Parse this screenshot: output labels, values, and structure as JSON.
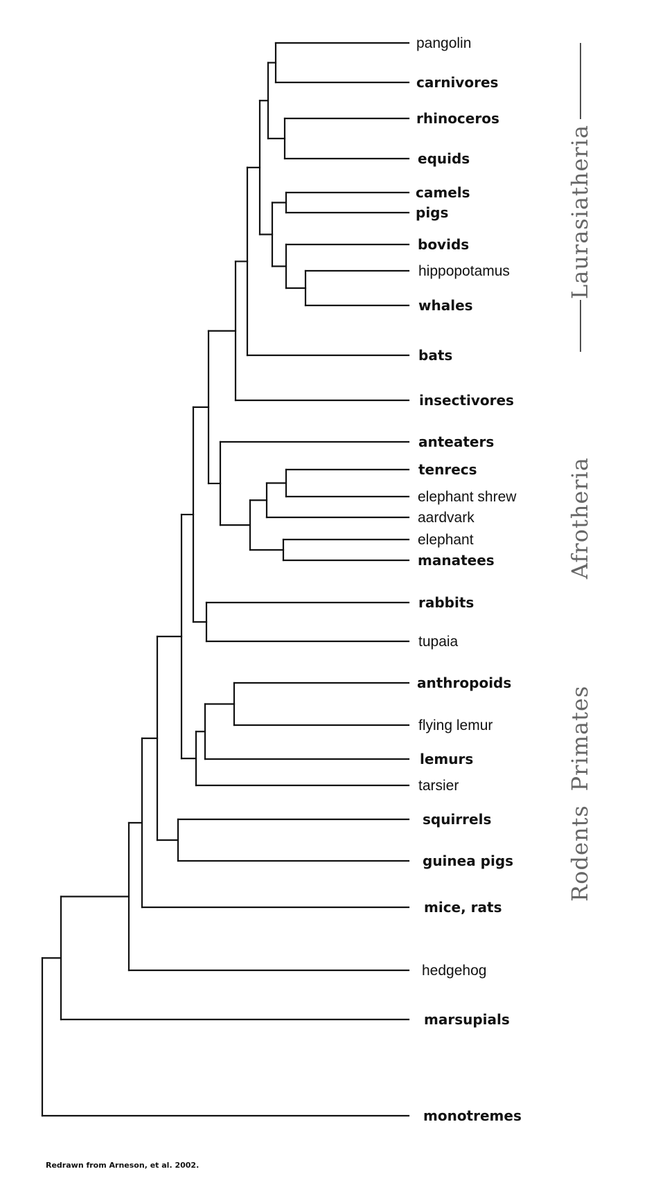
{
  "taxa": [
    {
      "id": "pangolin",
      "label": "pangolin",
      "bold": false
    },
    {
      "id": "carnivores",
      "label": "carnivores",
      "bold": true
    },
    {
      "id": "rhinoceros",
      "label": "rhinoceros",
      "bold": true
    },
    {
      "id": "equids",
      "label": "equids",
      "bold": true
    },
    {
      "id": "camels",
      "label": "camels",
      "bold": true
    },
    {
      "id": "pigs",
      "label": "pigs",
      "bold": true
    },
    {
      "id": "bovids",
      "label": "bovids",
      "bold": true
    },
    {
      "id": "hippopotamus",
      "label": "hippopotamus",
      "bold": false
    },
    {
      "id": "whales",
      "label": "whales",
      "bold": true
    },
    {
      "id": "bats",
      "label": "bats",
      "bold": true
    },
    {
      "id": "insectivores",
      "label": "insectivores",
      "bold": true
    },
    {
      "id": "anteaters",
      "label": "anteaters",
      "bold": true
    },
    {
      "id": "tenrecs",
      "label": "tenrecs",
      "bold": true
    },
    {
      "id": "elephant-shrew",
      "label": "elephant shrew",
      "bold": false
    },
    {
      "id": "aardvark",
      "label": "aardvark",
      "bold": false
    },
    {
      "id": "elephant",
      "label": "elephant",
      "bold": false
    },
    {
      "id": "manatees",
      "label": "manatees",
      "bold": true
    },
    {
      "id": "rabbits",
      "label": "rabbits",
      "bold": true
    },
    {
      "id": "tupaia",
      "label": "tupaia",
      "bold": false
    },
    {
      "id": "anthropoids",
      "label": "anthropoids",
      "bold": true
    },
    {
      "id": "flying-lemur",
      "label": "flying lemur",
      "bold": false
    },
    {
      "id": "lemurs",
      "label": "lemurs",
      "bold": true
    },
    {
      "id": "tarsier",
      "label": "tarsier",
      "bold": false
    },
    {
      "id": "squirrels",
      "label": "squirrels",
      "bold": true
    },
    {
      "id": "guinea-pigs",
      "label": "guinea pigs",
      "bold": true
    },
    {
      "id": "mice-rats",
      "label": "mice, rats",
      "bold": true
    },
    {
      "id": "hedgehog",
      "label": "hedgehog",
      "bold": false
    },
    {
      "id": "marsupials",
      "label": "marsupials",
      "bold": true
    },
    {
      "id": "monotremes",
      "label": "monotremes",
      "bold": true
    }
  ],
  "groups": [
    {
      "id": "laurasiatheria",
      "label": "Laurasiatheria"
    },
    {
      "id": "afrotheria",
      "label": "Afrotheria"
    },
    {
      "id": "primates",
      "label": "Primates"
    },
    {
      "id": "rodents",
      "label": "Rodents"
    }
  ],
  "tree": {
    "name": "root",
    "children": [
      {
        "name": "n-theria",
        "children": [
          {
            "name": "n-eutheria",
            "children": [
              {
                "name": "n-e1",
                "children": [
                  {
                    "name": "n-e2",
                    "children": [
                      {
                        "name": "n-e3",
                        "children": [
                          {
                            "name": "n-e4",
                            "children": [
                              {
                                "name": "n-laur",
                                "children": [
                                  {
                                    "name": "n-l1",
                                    "children": [
                                      {
                                        "name": "n-l2",
                                        "children": [
                                          {
                                            "name": "n-l3",
                                            "children": [
                                              {
                                                "name": "n-l4",
                                                "children": [
                                                  {
                                                    "name": "n-pc",
                                                    "children": [
                                                      {
                                                        "taxon": "pangolin"
                                                      },
                                                      {
                                                        "taxon": "carnivores"
                                                      }
                                                    ]
                                                  },
                                                  {
                                                    "name": "n-re",
                                                    "children": [
                                                      {
                                                        "taxon": "rhinoceros"
                                                      },
                                                      {
                                                        "taxon": "equids"
                                                      }
                                                    ]
                                                  }
                                                ]
                                              },
                                              {
                                                "name": "n-art",
                                                "children": [
                                                  {
                                                    "name": "n-cp",
                                                    "children": [
                                                      {
                                                        "taxon": "camels"
                                                      },
                                                      {
                                                        "taxon": "pigs"
                                                      }
                                                    ]
                                                  },
                                                  {
                                                    "name": "n-bhw",
                                                    "children": [
                                                      {
                                                        "taxon": "bovids"
                                                      },
                                                      {
                                                        "name": "n-hw",
                                                        "children": [
                                                          {
                                                            "taxon": "hippopotamus"
                                                          },
                                                          {
                                                            "taxon": "whales"
                                                          }
                                                        ]
                                                      }
                                                    ]
                                                  }
                                                ]
                                              }
                                            ]
                                          },
                                          {
                                            "taxon": "bats"
                                          }
                                        ]
                                      },
                                      {
                                        "taxon": "insectivores"
                                      }
                                    ]
                                  },
                                  {
                                    "name": "n-afro",
                                    "children": [
                                      {
                                        "taxon": "anteaters"
                                      },
                                      {
                                        "name": "n-a1",
                                        "children": [
                                          {
                                            "name": "n-a2",
                                            "children": [
                                              {
                                                "name": "n-te",
                                                "children": [
                                                  {
                                                    "taxon": "tenrecs"
                                                  },
                                                  {
                                                    "taxon": "elephant-shrew"
                                                  }
                                                ]
                                              },
                                              {
                                                "taxon": "aardvark"
                                              }
                                            ]
                                          },
                                          {
                                            "name": "n-em",
                                            "children": [
                                              {
                                                "taxon": "elephant"
                                              },
                                              {
                                                "taxon": "manatees"
                                              }
                                            ]
                                          }
                                        ]
                                      }
                                    ]
                                  }
                                ]
                              },
                              {
                                "name": "n-rt",
                                "children": [
                                  {
                                    "taxon": "rabbits"
                                  },
                                  {
                                    "taxon": "tupaia"
                                  }
                                ]
                              }
                            ]
                          },
                          {
                            "name": "n-prim",
                            "children": [
                              {
                                "name": "n-p1",
                                "children": [
                                  {
                                    "name": "n-af",
                                    "children": [
                                      {
                                        "taxon": "anthropoids"
                                      },
                                      {
                                        "taxon": "flying-lemur"
                                      }
                                    ]
                                  },
                                  {
                                    "taxon": "lemurs"
                                  }
                                ]
                              },
                              {
                                "taxon": "tarsier"
                              }
                            ]
                          }
                        ]
                      },
                      {
                        "name": "n-sg",
                        "children": [
                          {
                            "taxon": "squirrels"
                          },
                          {
                            "taxon": "guinea-pigs"
                          }
                        ]
                      }
                    ]
                  },
                  {
                    "taxon": "mice-rats"
                  }
                ]
              },
              {
                "taxon": "hedgehog"
              }
            ]
          },
          {
            "taxon": "marsupials"
          }
        ]
      },
      {
        "taxon": "monotremes"
      }
    ]
  },
  "credit": "Redrawn from Arneson, et al. 2002."
}
